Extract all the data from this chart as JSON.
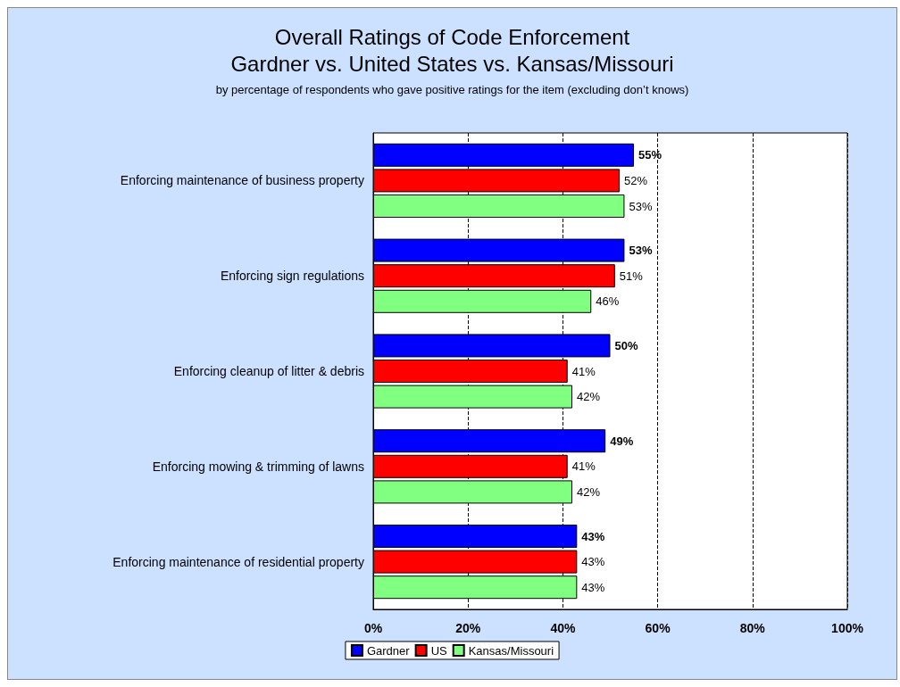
{
  "chart_data": {
    "type": "bar",
    "orientation": "horizontal",
    "title": "Overall Ratings of Code Enforcement\nGardner vs. United States vs. Kansas/Missouri",
    "subtitle": "by percentage of respondents who gave positive ratings for the item (excluding don’t knows)",
    "categories": [
      "Enforcing maintenance of business property",
      "Enforcing sign regulations",
      "Enforcing cleanup of litter & debris",
      "Enforcing mowing & trimming of lawns",
      "Enforcing maintenance of residential property"
    ],
    "series": [
      {
        "name": "Gardner",
        "color": "#0000ff",
        "values": [
          55,
          53,
          50,
          49,
          43
        ],
        "value_labels": [
          "55%",
          "53%",
          "50%",
          "49%",
          "43%"
        ]
      },
      {
        "name": "US",
        "color": "#ff0000",
        "values": [
          52,
          51,
          41,
          41,
          43
        ],
        "value_labels": [
          "52%",
          "51%",
          "41%",
          "41%",
          "43%"
        ]
      },
      {
        "name": "Kansas/Missouri",
        "color": "#80ff80",
        "values": [
          53,
          46,
          42,
          42,
          43
        ],
        "value_labels": [
          "53%",
          "46%",
          "42%",
          "42%",
          "43%"
        ]
      }
    ],
    "xlim": [
      0,
      100
    ],
    "xticks": [
      {
        "value": 0,
        "label": "0%"
      },
      {
        "value": 20,
        "label": "20%"
      },
      {
        "value": 40,
        "label": "40%"
      },
      {
        "value": 60,
        "label": "60%"
      },
      {
        "value": 80,
        "label": "80%"
      },
      {
        "value": 100,
        "label": "100%"
      }
    ],
    "grid": "x",
    "legend": "bottom"
  }
}
